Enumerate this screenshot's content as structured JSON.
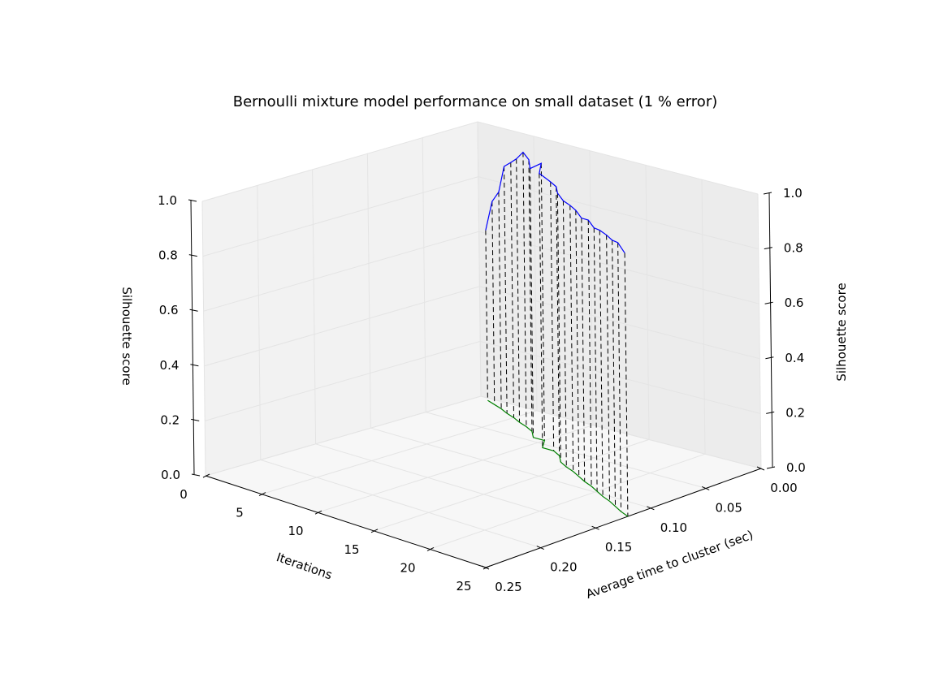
{
  "chart_data": {
    "type": "line",
    "projection": "3d",
    "title": "Bernoulli mixture model performance on small dataset (1 % error)",
    "axes": {
      "x": {
        "label": "Iterations",
        "range": [
          0,
          25
        ],
        "ticks": [
          "0",
          "5",
          "10",
          "15",
          "20",
          "25"
        ]
      },
      "y": {
        "label": "Average time to cluster (sec)",
        "range": [
          0.0,
          0.25
        ],
        "ticks": [
          "0.00",
          "0.05",
          "0.10",
          "0.15",
          "0.20",
          "0.25"
        ]
      },
      "z_left": {
        "label": "Silhouette score",
        "range": [
          0.0,
          1.0
        ],
        "ticks": [
          "0.0",
          "0.2",
          "0.4",
          "0.6",
          "0.8",
          "1.0"
        ]
      },
      "z_right": {
        "label": "Silhouette score",
        "range": [
          0.0,
          1.0
        ],
        "ticks": [
          "0.0",
          "0.2",
          "0.4",
          "0.6",
          "0.8",
          "1.0"
        ]
      }
    },
    "grid": true,
    "drop_lines": true,
    "series": [
      {
        "role": "score",
        "color": "#0000ff",
        "points": [
          {
            "iter": 1,
            "time": 0.004,
            "score": 0.62
          },
          {
            "iter": 2,
            "time": 0.008,
            "score": 0.74
          },
          {
            "iter": 3,
            "time": 0.012,
            "score": 0.79
          },
          {
            "iter": 4,
            "time": 0.017,
            "score": 0.9
          },
          {
            "iter": 5,
            "time": 0.021,
            "score": 0.93
          },
          {
            "iter": 6,
            "time": 0.026,
            "score": 0.96
          },
          {
            "iter": 7,
            "time": 0.03,
            "score": 1.0
          },
          {
            "iter": 8,
            "time": 0.035,
            "score": 0.99
          },
          {
            "iter": 9,
            "time": 0.044,
            "score": 0.98
          },
          {
            "iter": 10,
            "time": 0.044,
            "score": 1.01
          },
          {
            "iter": 11,
            "time": 0.056,
            "score": 1.0
          },
          {
            "iter": 12,
            "time": 0.056,
            "score": 0.98
          },
          {
            "iter": 13,
            "time": 0.061,
            "score": 0.98
          },
          {
            "iter": 14,
            "time": 0.07,
            "score": 0.98
          },
          {
            "iter": 15,
            "time": 0.075,
            "score": 0.97
          },
          {
            "iter": 16,
            "time": 0.079,
            "score": 0.97
          },
          {
            "iter": 17,
            "time": 0.084,
            "score": 0.97
          },
          {
            "iter": 18,
            "time": 0.089,
            "score": 0.96
          },
          {
            "iter": 19,
            "time": 0.093,
            "score": 0.97
          },
          {
            "iter": 20,
            "time": 0.098,
            "score": 0.96
          },
          {
            "iter": 21,
            "time": 0.103,
            "score": 0.97
          },
          {
            "iter": 22,
            "time": 0.107,
            "score": 0.97
          },
          {
            "iter": 23,
            "time": 0.112,
            "score": 0.97
          },
          {
            "iter": 24,
            "time": 0.117,
            "score": 0.98
          },
          {
            "iter": 25,
            "time": 0.121,
            "score": 0.96
          }
        ]
      },
      {
        "role": "floor",
        "color": "#008000",
        "score": 0.0
      }
    ]
  }
}
